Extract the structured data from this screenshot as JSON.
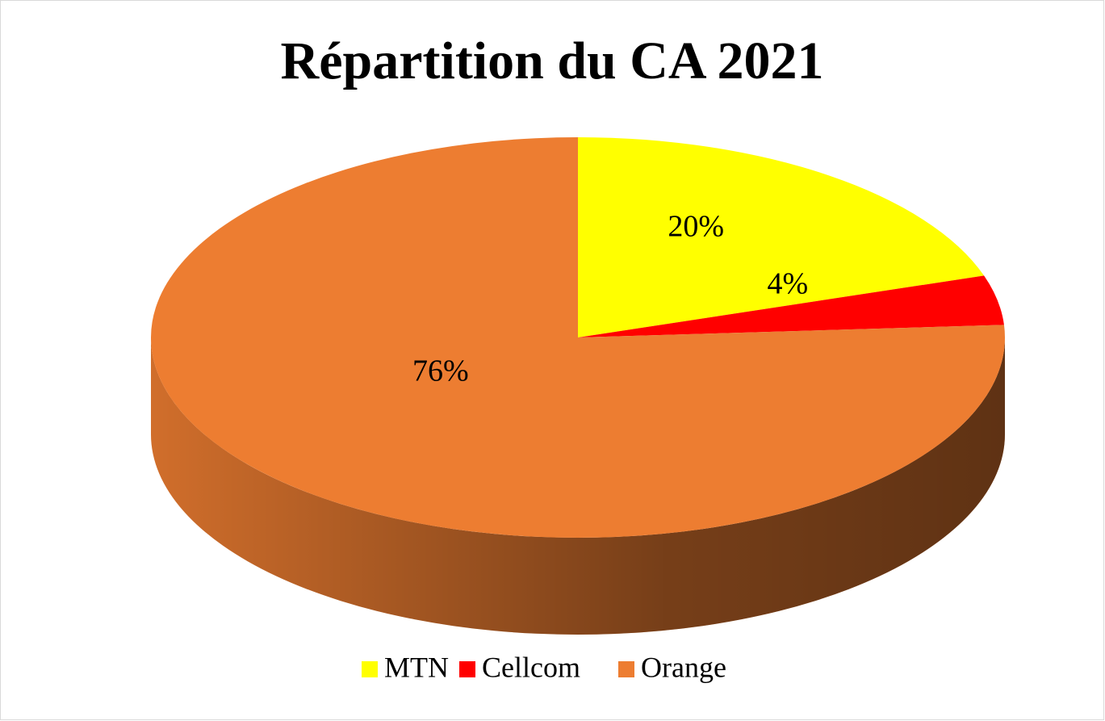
{
  "chart_data": {
    "type": "pie",
    "title": "Répartition du CA 2021",
    "categories": [
      "MTN",
      "Cellcom",
      "Orange"
    ],
    "values": [
      20,
      4,
      76
    ],
    "value_labels": [
      "20%",
      "4%",
      "76%"
    ],
    "colors": [
      "#ffff00",
      "#ff0000",
      "#ed7d31"
    ],
    "legend": "bottom"
  }
}
